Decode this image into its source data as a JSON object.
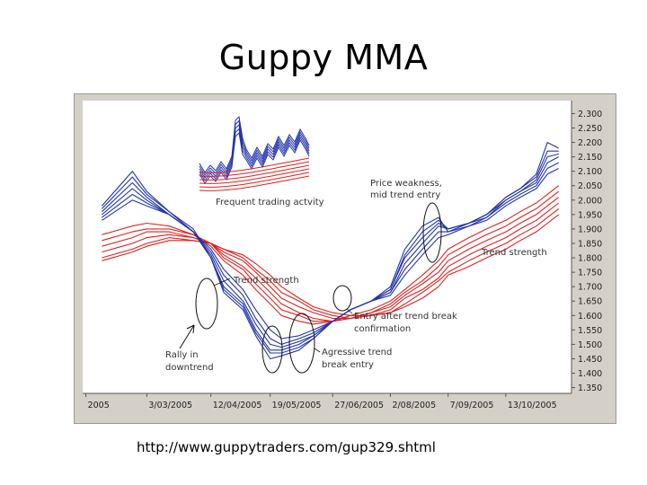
{
  "slide": {
    "title": "Guppy MMA",
    "source": "http://www.guppytraders.com/gup329.shtml"
  },
  "chart_data": {
    "type": "line",
    "y_ticks": [
      "2.300",
      "2.250",
      "2.200",
      "2.150",
      "2.100",
      "2.050",
      "2.000",
      "1.950",
      "1.900",
      "1.850",
      "1.800",
      "1.750",
      "1.700",
      "1.650",
      "1.600",
      "1.550",
      "1.500",
      "1.450",
      "1.400",
      "1.350"
    ],
    "ylim": [
      1.33,
      2.345
    ],
    "x_ticks": [
      "2005",
      "3/03/2005",
      "12/04/2005",
      "19/05/2005",
      "27/06/2005",
      "2/08/2005",
      "7/09/2005",
      "13/10/2005"
    ],
    "x": [
      "2005-02-03",
      "2005-02-22",
      "2005-03-03",
      "2005-03-17",
      "2005-04-01",
      "2005-04-12",
      "2005-04-20",
      "2005-05-02",
      "2005-05-10",
      "2005-05-19",
      "2005-05-26",
      "2005-06-06",
      "2005-06-15",
      "2005-06-27",
      "2005-07-08",
      "2005-07-21",
      "2005-08-02",
      "2005-08-11",
      "2005-08-22",
      "2005-09-01",
      "2005-09-07",
      "2005-09-20",
      "2005-10-01",
      "2005-10-13",
      "2005-10-22",
      "2005-11-01",
      "2005-11-08",
      "2005-11-15"
    ],
    "series": [
      {
        "group": "short-term",
        "color": "#2233aa",
        "values": [
          1.98,
          2.1,
          2.03,
          1.96,
          1.9,
          1.8,
          1.68,
          1.62,
          1.53,
          1.45,
          1.46,
          1.48,
          1.52,
          1.58,
          1.62,
          1.65,
          1.7,
          1.83,
          1.91,
          1.94,
          1.89,
          1.92,
          1.95,
          2.01,
          2.04,
          2.09,
          2.2,
          2.18
        ]
      },
      {
        "group": "short-term",
        "color": "#2233aa",
        "values": [
          1.97,
          2.08,
          2.02,
          1.96,
          1.89,
          1.8,
          1.69,
          1.63,
          1.54,
          1.47,
          1.47,
          1.49,
          1.52,
          1.58,
          1.62,
          1.65,
          1.69,
          1.81,
          1.89,
          1.93,
          1.9,
          1.92,
          1.95,
          2.01,
          2.04,
          2.08,
          2.17,
          2.17
        ]
      },
      {
        "group": "short-term",
        "color": "#2233aa",
        "values": [
          1.96,
          2.06,
          2.01,
          1.95,
          1.89,
          1.8,
          1.7,
          1.64,
          1.55,
          1.48,
          1.48,
          1.5,
          1.53,
          1.58,
          1.62,
          1.65,
          1.69,
          1.8,
          1.87,
          1.92,
          1.9,
          1.92,
          1.95,
          2.0,
          2.03,
          2.07,
          2.15,
          2.16
        ]
      },
      {
        "group": "short-term",
        "color": "#2233aa",
        "values": [
          1.95,
          2.04,
          2.0,
          1.95,
          1.89,
          1.81,
          1.72,
          1.65,
          1.57,
          1.5,
          1.49,
          1.51,
          1.53,
          1.58,
          1.62,
          1.65,
          1.68,
          1.78,
          1.85,
          1.91,
          1.9,
          1.92,
          1.94,
          2.0,
          2.03,
          2.06,
          2.13,
          2.15
        ]
      },
      {
        "group": "short-term",
        "color": "#2233aa",
        "values": [
          1.94,
          2.02,
          1.99,
          1.95,
          1.89,
          1.82,
          1.74,
          1.67,
          1.59,
          1.52,
          1.5,
          1.52,
          1.54,
          1.58,
          1.62,
          1.65,
          1.68,
          1.76,
          1.83,
          1.89,
          1.89,
          1.91,
          1.94,
          1.99,
          2.02,
          2.05,
          2.11,
          2.13
        ]
      },
      {
        "group": "short-term",
        "color": "#2233aa",
        "values": [
          1.93,
          2.0,
          1.98,
          1.95,
          1.89,
          1.83,
          1.76,
          1.69,
          1.62,
          1.55,
          1.52,
          1.53,
          1.55,
          1.58,
          1.62,
          1.65,
          1.67,
          1.74,
          1.81,
          1.87,
          1.88,
          1.91,
          1.93,
          1.98,
          2.01,
          2.04,
          2.09,
          2.11
        ]
      },
      {
        "group": "long-term",
        "color": "#e02020",
        "values": [
          1.88,
          1.91,
          1.92,
          1.91,
          1.88,
          1.84,
          1.79,
          1.74,
          1.69,
          1.64,
          1.6,
          1.58,
          1.57,
          1.58,
          1.6,
          1.62,
          1.65,
          1.69,
          1.74,
          1.79,
          1.83,
          1.87,
          1.9,
          1.93,
          1.96,
          1.99,
          2.02,
          2.05
        ]
      },
      {
        "group": "long-term",
        "color": "#e02020",
        "values": [
          1.86,
          1.89,
          1.9,
          1.9,
          1.88,
          1.85,
          1.8,
          1.76,
          1.71,
          1.66,
          1.62,
          1.6,
          1.58,
          1.58,
          1.59,
          1.61,
          1.64,
          1.68,
          1.72,
          1.77,
          1.81,
          1.85,
          1.88,
          1.91,
          1.94,
          1.97,
          2.0,
          2.03
        ]
      },
      {
        "group": "long-term",
        "color": "#e02020",
        "values": [
          1.84,
          1.87,
          1.89,
          1.89,
          1.87,
          1.85,
          1.81,
          1.77,
          1.73,
          1.68,
          1.64,
          1.61,
          1.59,
          1.58,
          1.59,
          1.61,
          1.63,
          1.67,
          1.71,
          1.75,
          1.79,
          1.83,
          1.86,
          1.89,
          1.92,
          1.95,
          1.98,
          2.01
        ]
      },
      {
        "group": "long-term",
        "color": "#e02020",
        "values": [
          1.82,
          1.85,
          1.87,
          1.88,
          1.87,
          1.85,
          1.82,
          1.79,
          1.75,
          1.7,
          1.66,
          1.63,
          1.61,
          1.59,
          1.59,
          1.6,
          1.62,
          1.66,
          1.69,
          1.73,
          1.77,
          1.81,
          1.84,
          1.87,
          1.9,
          1.93,
          1.96,
          1.99
        ]
      },
      {
        "group": "long-term",
        "color": "#e02020",
        "values": [
          1.8,
          1.83,
          1.85,
          1.87,
          1.86,
          1.85,
          1.83,
          1.8,
          1.76,
          1.72,
          1.68,
          1.65,
          1.62,
          1.6,
          1.59,
          1.6,
          1.61,
          1.64,
          1.68,
          1.72,
          1.75,
          1.79,
          1.82,
          1.85,
          1.88,
          1.91,
          1.94,
          1.97
        ]
      },
      {
        "group": "long-term",
        "color": "#e02020",
        "values": [
          1.79,
          1.82,
          1.84,
          1.86,
          1.86,
          1.85,
          1.83,
          1.81,
          1.78,
          1.74,
          1.7,
          1.66,
          1.63,
          1.61,
          1.6,
          1.6,
          1.61,
          1.63,
          1.66,
          1.7,
          1.74,
          1.77,
          1.8,
          1.83,
          1.86,
          1.89,
          1.92,
          1.95
        ]
      }
    ],
    "annotations": [
      {
        "id": "frequent_trading",
        "text": "Frequent trading actvity"
      },
      {
        "id": "price_weakness",
        "text": "Price weakness, mid trend entry"
      },
      {
        "id": "trend_strength_right",
        "text": "Trend strength"
      },
      {
        "id": "trend_strength_mid",
        "text": "Trend strength"
      },
      {
        "id": "entry_break",
        "text": "Entry after trend break confirmation"
      },
      {
        "id": "aggressive",
        "text": "Agressive trend break entry"
      },
      {
        "id": "rally",
        "text": "Rally in downtrend"
      }
    ]
  }
}
